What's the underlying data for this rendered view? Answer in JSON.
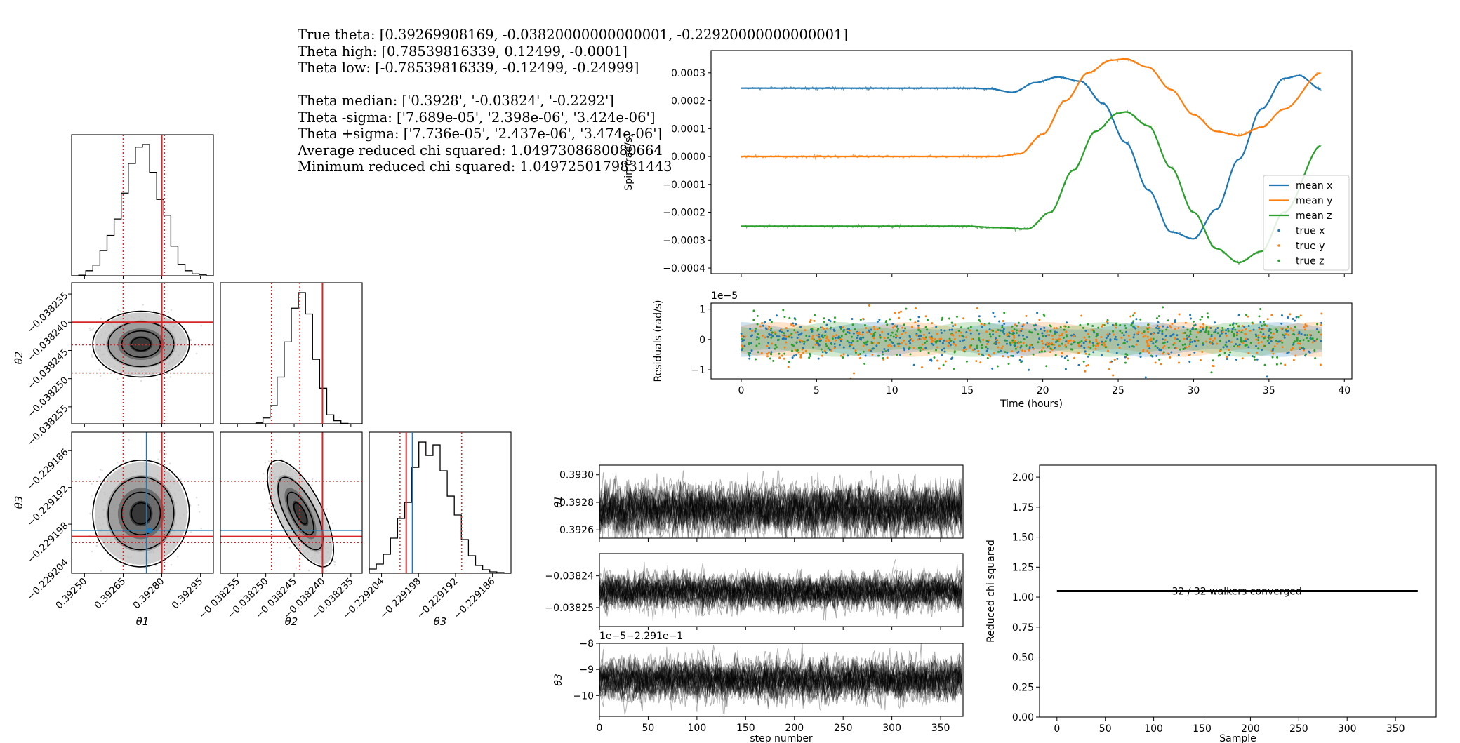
{
  "info": {
    "true_theta": "True theta: [0.39269908169, -0.03820000000000001, -0.22920000000000001]",
    "theta_high": "Theta high: [0.78539816339, 0.12499, -0.0001]",
    "theta_low": "Theta low: [-0.78539816339, -0.12499, -0.24999]",
    "theta_median": "Theta median: ['0.3928', '-0.03824', '-0.2292']",
    "theta_minus_sigma": "Theta -sigma: ['7.689e-05', '2.398e-06', '3.424e-06']",
    "theta_plus_sigma": "Theta +sigma: ['7.736e-05', '2.437e-06', '3.474e-06']",
    "avg_chi": "Average reduced chi squared: 1.0497308680080664",
    "min_chi": "Minimum reduced chi squared: 1.0497250179831443"
  },
  "colors": {
    "c0": "#1f77b4",
    "c1": "#ff7f0e",
    "c2": "#2ca02c",
    "red": "#d62728",
    "black": "#000000"
  },
  "chart_data": [
    {
      "id": "corner",
      "type": "scatter",
      "params": [
        "θ1",
        "θ2",
        "θ3"
      ],
      "ranges": [
        [
          0.39245,
          0.393
        ],
        [
          -0.038258,
          -0.038233
        ],
        [
          -0.229206,
          -0.229183
        ]
      ],
      "median": [
        0.3928,
        -0.03824,
        -0.2292
      ],
      "quantile_low": [
        0.39265,
        -0.038249,
        -0.229201
      ],
      "quantile_high": [
        0.39281,
        -0.038244,
        -0.229191
      ],
      "truth_theta3": -0.229199,
      "ticks": [
        [
          {
            "v": 0.3925,
            "label": "0.39250"
          },
          {
            "v": 0.39265,
            "label": "0.39265"
          },
          {
            "v": 0.3928,
            "label": "0.39280"
          },
          {
            "v": 0.39295,
            "label": "0.39295"
          }
        ],
        [
          {
            "v": -0.038255,
            "label": "−0.038255"
          },
          {
            "v": -0.03825,
            "label": "−0.038250"
          },
          {
            "v": -0.038245,
            "label": "−0.038245"
          },
          {
            "v": -0.03824,
            "label": "−0.038240"
          },
          {
            "v": -0.038235,
            "label": "−0.038235"
          }
        ],
        [
          {
            "v": -0.229204,
            "label": "−0.229204"
          },
          {
            "v": -0.229198,
            "label": "−0.229198"
          },
          {
            "v": -0.229192,
            "label": "−0.229192"
          },
          {
            "v": -0.229186,
            "label": "−0.229186"
          }
        ]
      ],
      "xlabels": [
        "θ1",
        "θ2",
        "θ3"
      ],
      "ylabels": [
        "θ2",
        "θ3"
      ]
    },
    {
      "id": "spin",
      "type": "line",
      "xlim": [
        -2,
        40.5
      ],
      "ylim": [
        -0.00042,
        0.00038
      ],
      "ylabel": "Spin (rad/s)",
      "yticks": [
        {
          "v": 0.0003,
          "label": "0.0003"
        },
        {
          "v": 0.0002,
          "label": "0.0002"
        },
        {
          "v": 0.0001,
          "label": "0.0001"
        },
        {
          "v": 0.0,
          "label": "0.0000"
        },
        {
          "v": -0.0001,
          "label": "−0.0001"
        },
        {
          "v": -0.0002,
          "label": "−0.0002"
        },
        {
          "v": -0.0003,
          "label": "−0.0003"
        },
        {
          "v": -0.0004,
          "label": "−0.0004"
        }
      ],
      "xticks": [
        0,
        5,
        10,
        15,
        20,
        25,
        30,
        35,
        40
      ],
      "legend": [
        "mean x",
        "mean y",
        "mean z",
        "true x",
        "true y",
        "true z"
      ],
      "legend_position": "lower-right",
      "series": [
        {
          "name": "mean x",
          "color": "#1f77b4",
          "x": [
            0,
            5,
            10,
            15,
            16.5,
            18,
            19.5,
            21,
            22.5,
            24,
            25.5,
            27,
            28.5,
            30,
            31.5,
            33,
            34.5,
            36,
            37,
            38.5
          ],
          "y": [
            0.000245,
            0.000245,
            0.000245,
            0.000245,
            0.000243,
            0.00023,
            0.000265,
            0.000285,
            0.00027,
            0.00019,
            5e-05,
            -0.00012,
            -0.00027,
            -0.000295,
            -0.00019,
            -1e-05,
            0.00017,
            0.00028,
            0.00029,
            0.00024
          ]
        },
        {
          "name": "mean y",
          "color": "#ff7f0e",
          "x": [
            0,
            5,
            10,
            15,
            17,
            18.5,
            20,
            21.5,
            23,
            24.5,
            25.5,
            27,
            28.5,
            30,
            31.5,
            33,
            34.5,
            36,
            38.5
          ],
          "y": [
            0.0,
            0.0,
            0.0,
            0.0,
            0.0,
            1e-05,
            8e-05,
            0.0002,
            0.0003,
            0.000345,
            0.00035,
            0.00032,
            0.00024,
            0.00015,
            9e-05,
            7.5e-05,
            0.000105,
            0.00017,
            0.0003
          ]
        },
        {
          "name": "mean z",
          "color": "#2ca02c",
          "x": [
            0,
            5,
            10,
            15,
            17,
            19,
            20.5,
            22,
            23.5,
            25,
            25.5,
            27,
            28.5,
            30,
            31.5,
            33,
            34.5,
            36,
            38.5
          ],
          "y": [
            -0.00025,
            -0.00025,
            -0.00025,
            -0.00025,
            -0.000255,
            -0.00026,
            -0.0002,
            -5e-05,
            9e-05,
            0.000155,
            0.00016,
            0.00011,
            -4e-05,
            -0.0002,
            -0.00033,
            -0.00038,
            -0.00034,
            -0.0002,
            4e-05
          ]
        }
      ]
    },
    {
      "id": "residuals",
      "type": "scatter",
      "xlim": [
        -2,
        40.5
      ],
      "ylim": [
        -1.3,
        1.2
      ],
      "offset_text": "1e−5",
      "xlabel": "Time (hours)",
      "ylabel": "Residuals (rad/s)",
      "yticks": [
        {
          "v": 1,
          "label": "1"
        },
        {
          "v": 0,
          "label": "0"
        },
        {
          "v": -1,
          "label": "−1"
        }
      ],
      "xticks": [
        0,
        5,
        10,
        15,
        20,
        25,
        30,
        35,
        40
      ],
      "band_halfwidth": 0.5
    },
    {
      "id": "trace-theta1",
      "type": "line",
      "xlim": [
        0,
        373
      ],
      "ylim": [
        0.39254,
        0.39307
      ],
      "ylabel": "θ1",
      "yticks": [
        {
          "v": 0.393,
          "label": "0.3930"
        },
        {
          "v": 0.3928,
          "label": "0.3928"
        },
        {
          "v": 0.3926,
          "label": "0.3926"
        }
      ],
      "center": 0.39275,
      "spread": 8e-05
    },
    {
      "id": "trace-theta2",
      "type": "line",
      "xlim": [
        0,
        373
      ],
      "ylim": [
        -0.038256,
        -0.038233
      ],
      "ylabel": "",
      "yticks": [
        {
          "v": -0.03824,
          "label": "−0.03824"
        },
        {
          "v": -0.03825,
          "label": "−0.03825"
        }
      ],
      "center": -0.038245,
      "spread": 2.5e-06
    },
    {
      "id": "trace-theta3",
      "type": "line",
      "xlim": [
        0,
        373
      ],
      "ylim": [
        -10.8,
        -8
      ],
      "offset_text": "1e−5−2.291e−1",
      "xlabel": "step number",
      "ylabel": "θ3",
      "yticks": [
        {
          "v": -8,
          "label": "−8"
        },
        {
          "v": -9,
          "label": "−9"
        },
        {
          "v": -10,
          "label": "−10"
        }
      ],
      "xticks": [
        0,
        50,
        100,
        150,
        200,
        250,
        300,
        350
      ],
      "center": -9.4,
      "spread": 0.35
    },
    {
      "id": "chi",
      "type": "line",
      "xlim": [
        -18,
        392
      ],
      "ylim": [
        0,
        2.1
      ],
      "xlabel": "Sample",
      "ylabel": "Reduced chi squared",
      "yticks": [
        {
          "v": 0,
          "label": "0.00"
        },
        {
          "v": 0.25,
          "label": "0.25"
        },
        {
          "v": 0.5,
          "label": "0.50"
        },
        {
          "v": 0.75,
          "label": "0.75"
        },
        {
          "v": 1.0,
          "label": "1.00"
        },
        {
          "v": 1.25,
          "label": "1.25"
        },
        {
          "v": 1.5,
          "label": "1.50"
        },
        {
          "v": 1.75,
          "label": "1.75"
        },
        {
          "v": 2.0,
          "label": "2.00"
        }
      ],
      "xticks": [
        0,
        50,
        100,
        150,
        200,
        250,
        300,
        350
      ],
      "series": [
        {
          "x": [
            0,
            373
          ],
          "y": [
            1.05,
            1.05
          ]
        }
      ],
      "annotation": "32 / 32 walkers converged"
    }
  ]
}
